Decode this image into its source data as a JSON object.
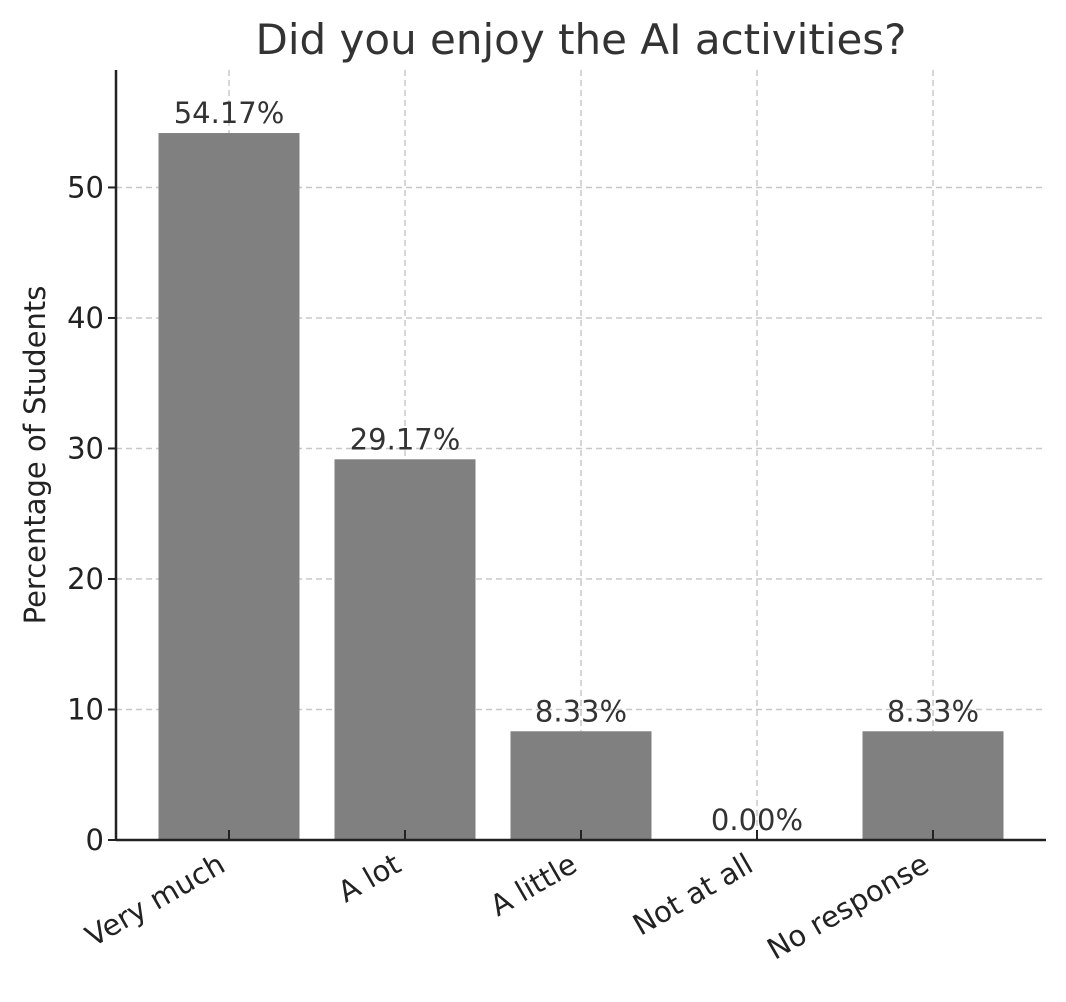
{
  "chart_data": {
    "type": "bar",
    "title": "Did you enjoy the AI activities?",
    "xlabel": "",
    "ylabel": "Percentage of Students",
    "categories": [
      "Very much",
      "A lot",
      "A little",
      "Not at all",
      "No response"
    ],
    "values": [
      54.17,
      29.17,
      8.33,
      0.0,
      8.33
    ],
    "data_labels": [
      "54.17%",
      "29.17%",
      "8.33%",
      "0.00%",
      "8.33%"
    ],
    "ylim": [
      0,
      59
    ],
    "yticks": [
      0,
      10,
      20,
      30,
      40,
      50
    ],
    "ytick_labels": [
      "0",
      "10",
      "20",
      "30",
      "40",
      "50"
    ],
    "bar_color": "#808080",
    "grid": true,
    "legend": "none"
  }
}
